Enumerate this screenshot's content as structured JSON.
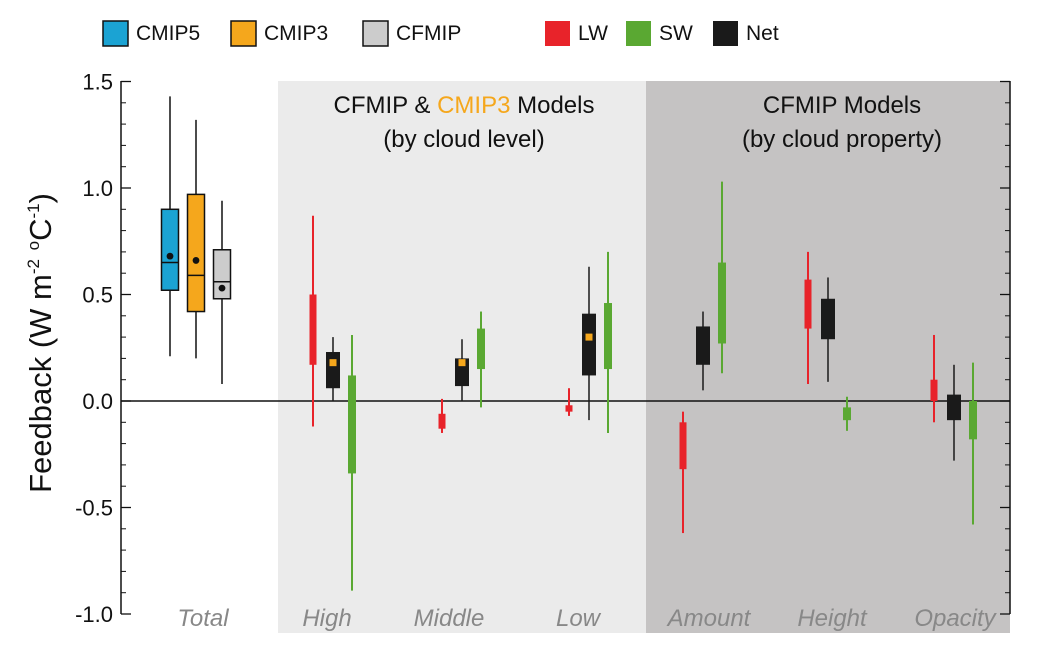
{
  "chart_data": {
    "type": "box",
    "ylabel": {
      "main": "Feedback (W m",
      "sup1": "-2",
      "mid": " ",
      "sup2": "o",
      "unit": "C",
      "sup3": "-1",
      "close": ")"
    },
    "ylim": [
      -1.0,
      1.5
    ],
    "yticks": [
      "1.5",
      "1.0",
      "0.5",
      "0.0",
      "-0.5",
      "-1.0"
    ],
    "ytick_values": [
      1.5,
      1.0,
      0.5,
      0.0,
      -0.5,
      -1.0
    ],
    "legend": [
      {
        "name": "CMIP5",
        "color": "#1ba3d3"
      },
      {
        "name": "CMIP3",
        "color": "#f5a71c"
      },
      {
        "name": "CFMIP",
        "color": "#cccccc"
      },
      {
        "name": "LW",
        "color": "#e8232a"
      },
      {
        "name": "SW",
        "color": "#5aa832"
      },
      {
        "name": "Net",
        "color": "#1a1a1a"
      }
    ],
    "panels": [
      {
        "line1a": "CFMIP & ",
        "line1b": "CMIP3",
        "line1c": " Models",
        "line2": "(by cloud level)",
        "line1b_color": "#f5a71c",
        "background": "#ebebeb"
      },
      {
        "line1": "CFMIP Models",
        "line2": "(by cloud property)",
        "background": "#c5c3c3"
      }
    ],
    "categories": [
      "Total",
      "High",
      "Middle",
      "Low",
      "Amount",
      "Height",
      "Opacity"
    ],
    "total_boxes": [
      {
        "model": "CMIP5",
        "whisker_low": 0.21,
        "q1": 0.52,
        "median": 0.65,
        "q3": 0.9,
        "whisker_high": 1.43,
        "mean": 0.68
      },
      {
        "model": "CMIP3",
        "whisker_low": 0.2,
        "q1": 0.42,
        "median": 0.59,
        "q3": 0.97,
        "whisker_high": 1.32,
        "mean": 0.66
      },
      {
        "model": "CFMIP",
        "whisker_low": 0.08,
        "q1": 0.48,
        "median": 0.56,
        "q3": 0.71,
        "whisker_high": 0.94,
        "mean": 0.53
      }
    ],
    "component_ranges": [
      {
        "category": "High",
        "component": "LW",
        "low": -0.12,
        "q1": 0.17,
        "q3": 0.5,
        "high": 0.87
      },
      {
        "category": "High",
        "component": "Net",
        "low": 0.0,
        "q1": 0.06,
        "q3": 0.23,
        "high": 0.3,
        "cmip3": 0.18
      },
      {
        "category": "High",
        "component": "SW",
        "low": -0.89,
        "q1": -0.34,
        "q3": 0.12,
        "high": 0.31
      },
      {
        "category": "Middle",
        "component": "LW",
        "low": -0.15,
        "q1": -0.13,
        "q3": -0.06,
        "high": 0.01
      },
      {
        "category": "Middle",
        "component": "Net",
        "low": 0.0,
        "q1": 0.07,
        "q3": 0.2,
        "high": 0.29,
        "cmip3": 0.18
      },
      {
        "category": "Middle",
        "component": "SW",
        "low": -0.03,
        "q1": 0.15,
        "q3": 0.34,
        "high": 0.42
      },
      {
        "category": "Low",
        "component": "LW",
        "low": -0.07,
        "q1": -0.05,
        "q3": -0.02,
        "high": 0.06
      },
      {
        "category": "Low",
        "component": "Net",
        "low": -0.09,
        "q1": 0.12,
        "q3": 0.41,
        "high": 0.63,
        "cmip3": 0.3
      },
      {
        "category": "Low",
        "component": "SW",
        "low": -0.15,
        "q1": 0.15,
        "q3": 0.46,
        "high": 0.7
      },
      {
        "category": "Amount",
        "component": "LW",
        "low": -0.62,
        "q1": -0.32,
        "q3": -0.1,
        "high": -0.05
      },
      {
        "category": "Amount",
        "component": "Net",
        "low": 0.05,
        "q1": 0.17,
        "q3": 0.35,
        "high": 0.42
      },
      {
        "category": "Amount",
        "component": "SW",
        "low": 0.13,
        "q1": 0.27,
        "q3": 0.65,
        "high": 1.03
      },
      {
        "category": "Height",
        "component": "LW",
        "low": 0.08,
        "q1": 0.34,
        "q3": 0.57,
        "high": 0.7
      },
      {
        "category": "Height",
        "component": "Net",
        "low": 0.09,
        "q1": 0.29,
        "q3": 0.48,
        "high": 0.58
      },
      {
        "category": "Height",
        "component": "SW",
        "low": -0.14,
        "q1": -0.09,
        "q3": -0.03,
        "high": 0.02
      },
      {
        "category": "Opacity",
        "component": "LW",
        "low": -0.1,
        "q1": 0.0,
        "q3": 0.1,
        "high": 0.31
      },
      {
        "category": "Opacity",
        "component": "Net",
        "low": -0.28,
        "q1": -0.09,
        "q3": 0.03,
        "high": 0.17
      },
      {
        "category": "Opacity",
        "component": "SW",
        "low": -0.58,
        "q1": -0.18,
        "q3": 0.0,
        "high": 0.18
      }
    ],
    "cmip3_marker_color": "#f5a71c"
  }
}
